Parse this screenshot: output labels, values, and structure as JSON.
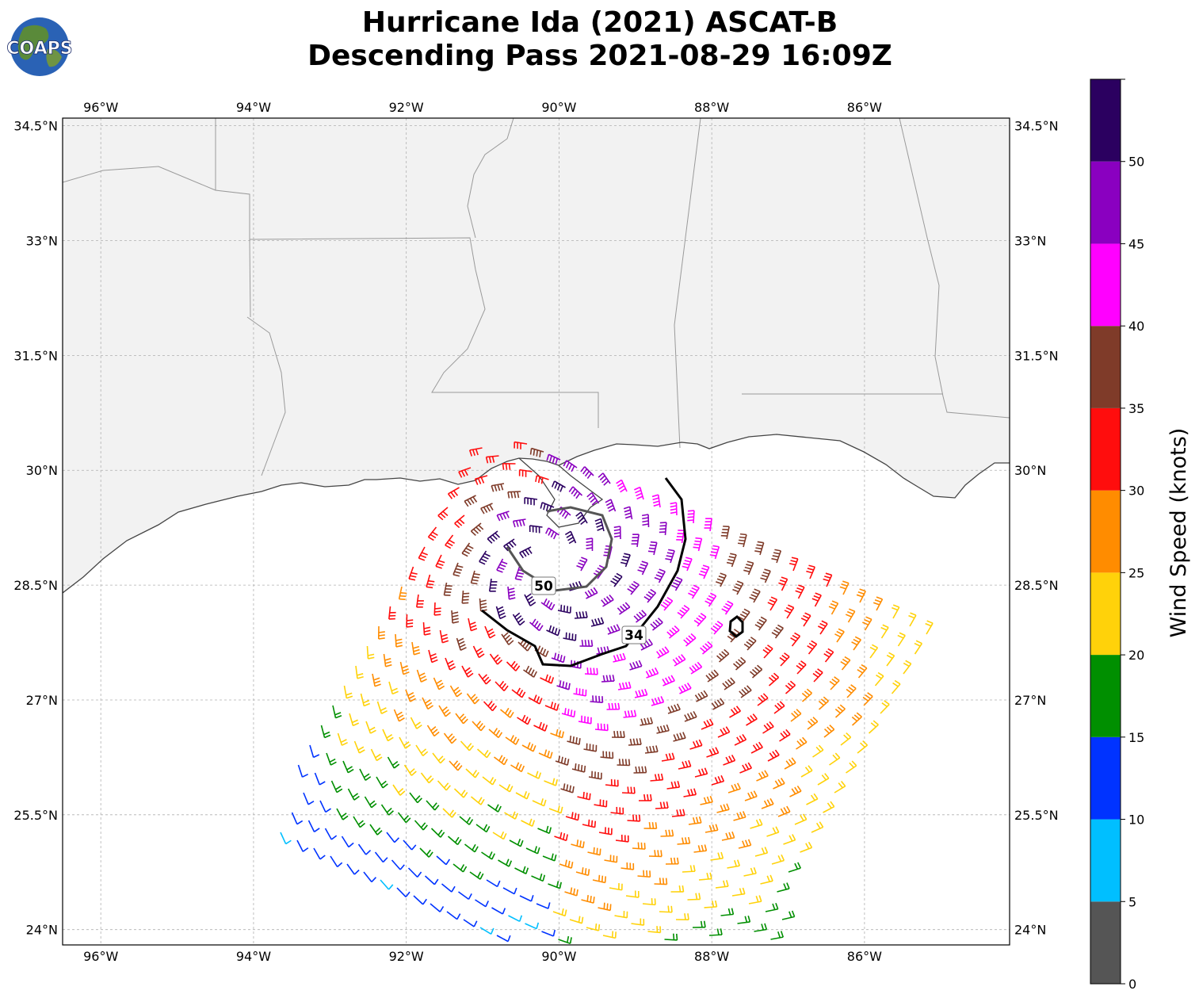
{
  "logo": {
    "text": "COAPS"
  },
  "title": {
    "line1": "Hurricane Ida (2021) ASCAT-B",
    "line2": "Descending Pass 2021-08-29 16:09Z"
  },
  "map": {
    "lon_range": [
      -96.5,
      -84.1
    ],
    "lat_range": [
      23.8,
      34.6
    ],
    "lon_ticks": [
      {
        "value": -96,
        "label": "96°W"
      },
      {
        "value": -94,
        "label": "94°W"
      },
      {
        "value": -92,
        "label": "92°W"
      },
      {
        "value": -90,
        "label": "90°W"
      },
      {
        "value": -88,
        "label": "88°W"
      },
      {
        "value": -86,
        "label": "86°W"
      }
    ],
    "lat_ticks": [
      {
        "value": 34.5,
        "label": "34.5°N"
      },
      {
        "value": 33,
        "label": "33°N"
      },
      {
        "value": 31.5,
        "label": "31.5°N"
      },
      {
        "value": 30,
        "label": "30°N"
      },
      {
        "value": 28.5,
        "label": "28.5°N"
      },
      {
        "value": 27,
        "label": "27°N"
      },
      {
        "value": 25.5,
        "label": "25.5°N"
      },
      {
        "value": 24,
        "label": "24°N"
      }
    ],
    "gridlines": true,
    "land_color": "#f2f2f2",
    "ocean_color": "#ffffff",
    "storm_center": {
      "lon": -90.1,
      "lat": 28.75
    },
    "contours": [
      {
        "label": "50",
        "color": "#555555",
        "label_pos": {
          "lon": -90.2,
          "lat": 28.47
        }
      },
      {
        "label": "34",
        "color": "#000000",
        "label_pos": {
          "lon": -89.0,
          "lat": 27.75
        }
      }
    ]
  },
  "colorbar": {
    "label": "Wind Speed (knots)",
    "bounds": [
      0,
      5,
      10,
      15,
      20,
      25,
      30,
      35,
      40,
      45,
      50,
      55
    ],
    "tick_labels": [
      "0",
      "5",
      "10",
      "15",
      "20",
      "25",
      "30",
      "35",
      "40",
      "45",
      "50"
    ],
    "colors": [
      "#555555",
      "#00bfff",
      "#0033ff",
      "#008f00",
      "#ffd20a",
      "#ff8c00",
      "#ff0d0d",
      "#7f3b29",
      "#ff00ff",
      "#8a00c0",
      "#2b0060"
    ]
  }
}
